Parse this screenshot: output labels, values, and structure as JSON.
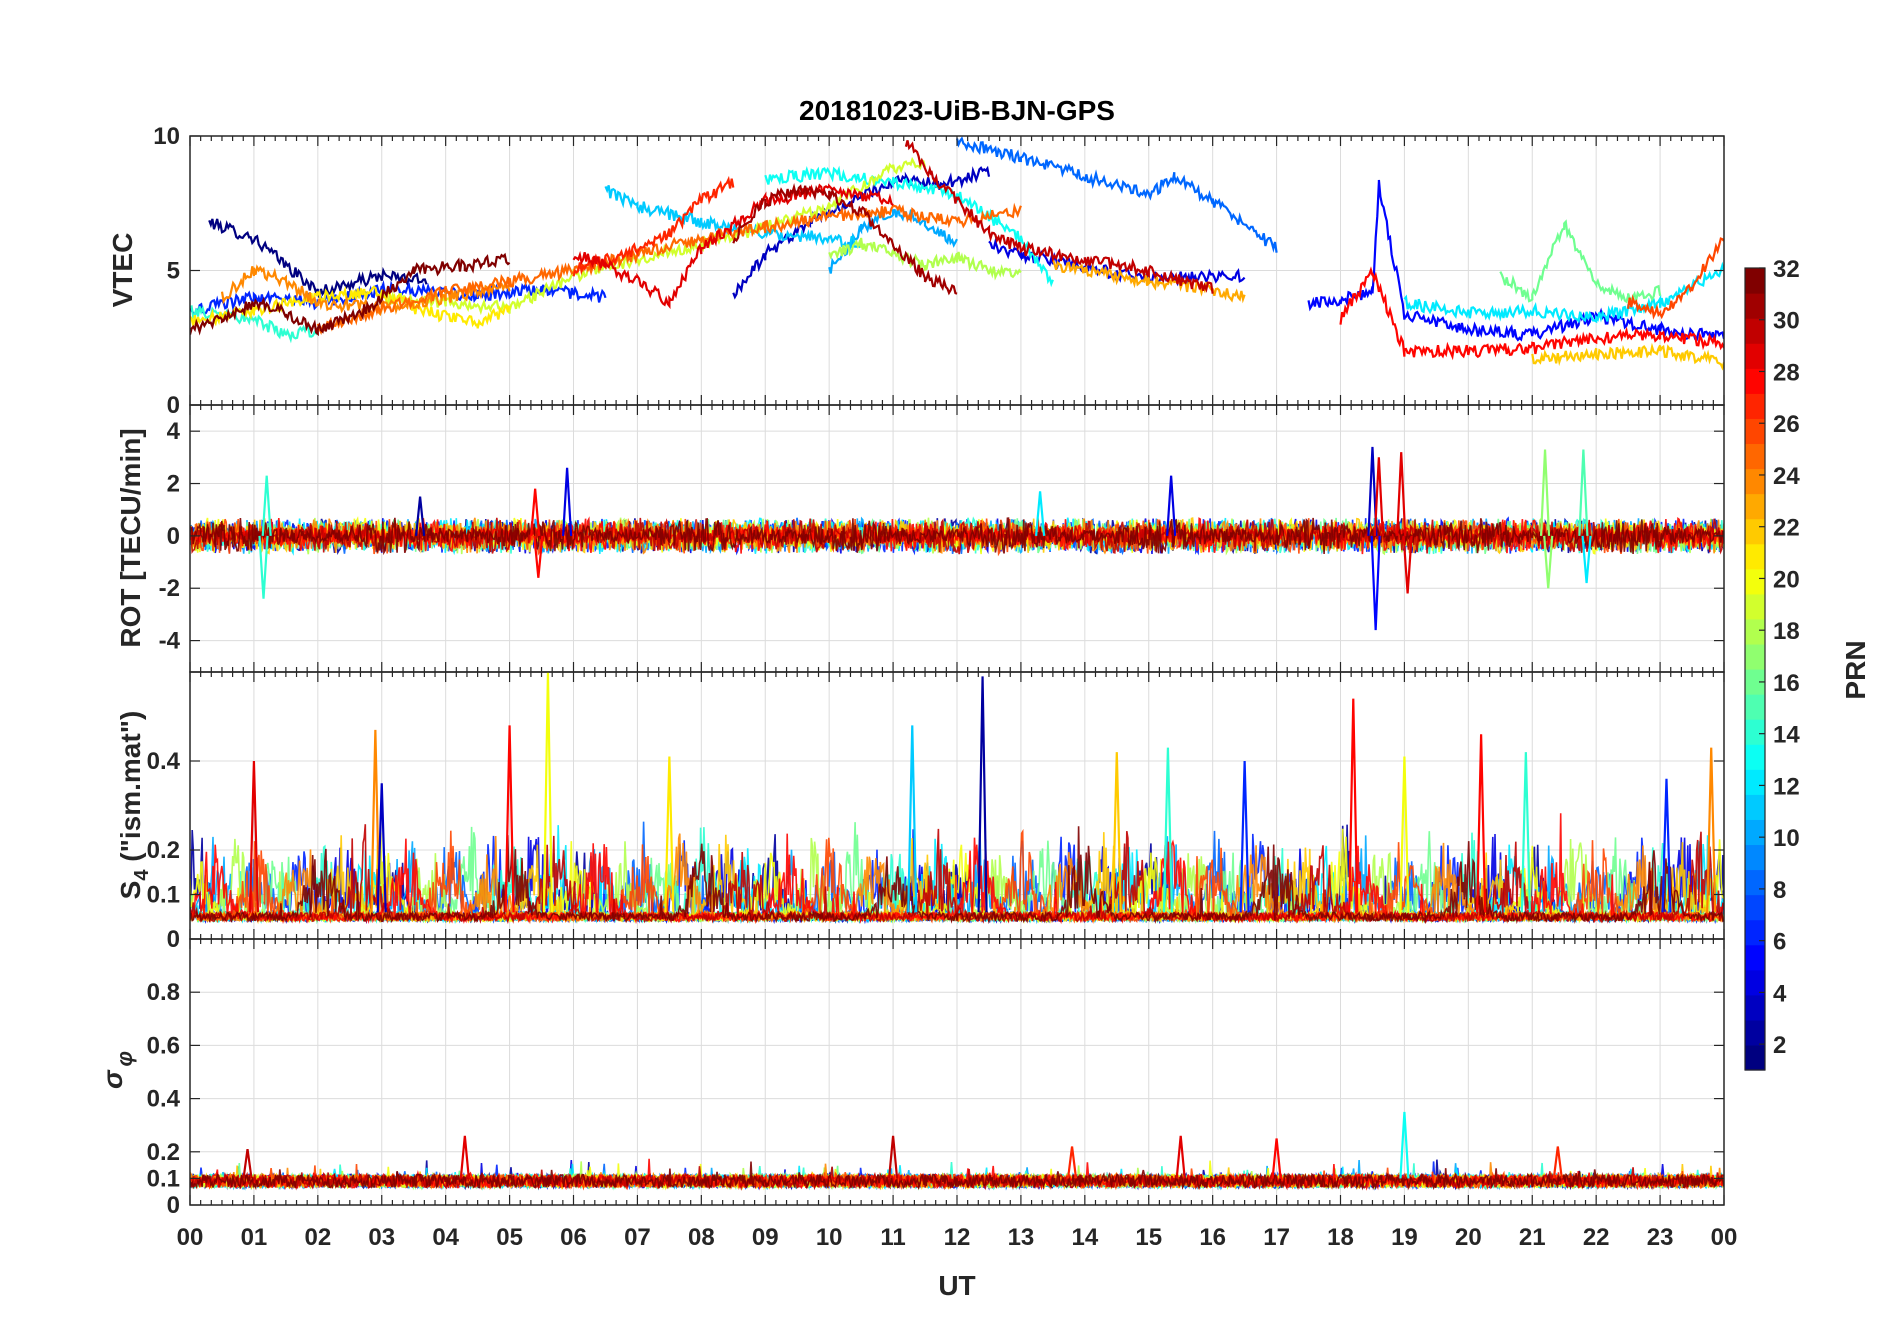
{
  "chart_data": {
    "type": "line",
    "title": "20181023-UiB-BJN-GPS",
    "xlabel": "UT",
    "x_ticks": [
      "00",
      "01",
      "02",
      "03",
      "04",
      "05",
      "06",
      "07",
      "08",
      "09",
      "10",
      "11",
      "12",
      "13",
      "14",
      "15",
      "16",
      "17",
      "18",
      "19",
      "20",
      "21",
      "22",
      "23",
      "00"
    ],
    "xlim": [
      0,
      24
    ],
    "grid": true,
    "colorbar": {
      "label": "PRN",
      "range": [
        1,
        32
      ],
      "ticks": [
        "2",
        "4",
        "6",
        "8",
        "10",
        "12",
        "14",
        "16",
        "18",
        "20",
        "22",
        "24",
        "26",
        "28",
        "30",
        "32"
      ],
      "colormap": "jet",
      "levels": 32
    },
    "panels": [
      {
        "id": "vtec",
        "ylabel": "VTEC",
        "ylim": [
          0,
          10
        ],
        "y_ticks": [
          "0",
          "5",
          "10"
        ],
        "series": [
          {
            "prn": 1,
            "x": [
              0.3,
              1.0,
              2.0,
              3.0,
              3.7
            ],
            "y": [
              6.8,
              6.2,
              4.2,
              4.8,
              4.6
            ]
          },
          {
            "prn": 3,
            "x": [
              8.5,
              9.0,
              9.7,
              10.5,
              11.2,
              11.8,
              12.5
            ],
            "y": [
              4.1,
              5.6,
              6.8,
              7.8,
              8.4,
              8.2,
              8.7
            ]
          },
          {
            "prn": 4,
            "x": [
              12.5,
              13.0,
              13.5,
              14.0,
              15.0,
              16.5
            ],
            "y": [
              6.0,
              5.6,
              5.4,
              5.1,
              4.7,
              4.8
            ]
          },
          {
            "prn": 5,
            "x": [
              17.5,
              18.0,
              18.5,
              18.6,
              19.0,
              20.0,
              21.0,
              22.0,
              23.0,
              24.0
            ],
            "y": [
              3.8,
              3.9,
              4.2,
              8.2,
              3.4,
              2.8,
              2.6,
              3.3,
              2.8,
              2.5
            ]
          },
          {
            "prn": 6,
            "x": [
              0.0,
              1.0,
              2.0,
              3.0,
              4.5,
              5.5,
              6.5
            ],
            "y": [
              3.5,
              4.0,
              3.8,
              4.3,
              4.1,
              4.3,
              4.0
            ]
          },
          {
            "prn": 8,
            "x": [
              12.0,
              13.0,
              14.0,
              15.0,
              15.4,
              16.0,
              17.0
            ],
            "y": [
              9.8,
              9.2,
              8.5,
              7.8,
              8.5,
              7.6,
              5.8
            ]
          },
          {
            "prn": 10,
            "x": [
              10.0,
              10.5,
              11.0,
              11.5,
              12.0
            ],
            "y": [
              5.0,
              6.5,
              7.2,
              6.8,
              6.0
            ]
          },
          {
            "prn": 11,
            "x": [
              6.5,
              7.0,
              8.0,
              9.0,
              10.0,
              10.5
            ],
            "y": [
              8.0,
              7.4,
              6.8,
              6.4,
              6.2,
              6.0
            ]
          },
          {
            "prn": 12,
            "x": [
              19.0,
              20.0,
              21.0,
              22.0,
              23.0,
              24.0
            ],
            "y": [
              3.8,
              3.4,
              3.5,
              3.2,
              3.8,
              5.0
            ]
          },
          {
            "prn": 13,
            "x": [
              9.0,
              10.0,
              11.0,
              12.0,
              13.0,
              13.5
            ],
            "y": [
              8.4,
              8.6,
              8.3,
              7.8,
              6.2,
              4.5
            ]
          },
          {
            "prn": 14,
            "x": [
              0.0,
              1.0,
              1.5,
              2.0
            ],
            "y": [
              3.5,
              3.2,
              2.6,
              2.8
            ]
          },
          {
            "prn": 16,
            "x": [
              20.5,
              21.0,
              21.5,
              22.0,
              22.5,
              23.0
            ],
            "y": [
              4.8,
              4.0,
              6.7,
              4.5,
              4.0,
              4.2
            ]
          },
          {
            "prn": 18,
            "x": [
              10.0,
              10.5,
              11.0,
              11.5,
              12.0,
              12.5,
              13.0
            ],
            "y": [
              5.5,
              6.0,
              5.6,
              5.2,
              5.5,
              5.0,
              4.8
            ]
          },
          {
            "prn": 19,
            "x": [
              3.0,
              4.0,
              5.0,
              5.5,
              6.0,
              7.0,
              8.0,
              9.0,
              10.0,
              11.0,
              11.5
            ],
            "y": [
              4.0,
              3.8,
              3.6,
              4.2,
              4.8,
              5.4,
              6.0,
              6.6,
              7.4,
              8.8,
              9.0
            ]
          },
          {
            "prn": 21,
            "x": [
              0.0,
              1.0,
              2.0,
              3.0,
              3.5,
              4.5,
              5.0
            ],
            "y": [
              3.1,
              3.5,
              4.0,
              4.2,
              3.6,
              3.0,
              3.6
            ]
          },
          {
            "prn": 22,
            "x": [
              21.0,
              22.0,
              23.0,
              24.0
            ],
            "y": [
              1.7,
              1.9,
              2.0,
              1.6
            ]
          },
          {
            "prn": 23,
            "x": [
              13.5,
              14.0,
              15.0,
              16.0,
              16.5
            ],
            "y": [
              5.2,
              5.0,
              4.6,
              4.3,
              4.0
            ]
          },
          {
            "prn": 24,
            "x": [
              0.5,
              1.0,
              1.5,
              2.0,
              3.0,
              4.0,
              5.0
            ],
            "y": [
              4.0,
              5.0,
              4.6,
              3.8,
              3.6,
              4.0,
              4.4
            ]
          },
          {
            "prn": 25,
            "x": [
              2.0,
              3.0,
              4.0,
              5.0,
              6.0,
              7.0,
              8.0,
              9.0,
              10.0,
              11.0,
              12.0,
              13.0
            ],
            "y": [
              2.8,
              3.6,
              4.2,
              4.6,
              5.0,
              5.6,
              6.2,
              6.6,
              7.0,
              7.2,
              6.8,
              7.2
            ]
          },
          {
            "prn": 26,
            "x": [
              22.5,
              23.0,
              23.5,
              24.0
            ],
            "y": [
              3.8,
              3.4,
              4.4,
              6.2
            ]
          },
          {
            "prn": 27,
            "x": [
              6.0,
              7.0,
              7.5,
              8.0,
              8.5
            ],
            "y": [
              5.0,
              5.8,
              6.4,
              7.6,
              8.3
            ]
          },
          {
            "prn": 28,
            "x": [
              18.0,
              18.5,
              19.0,
              20.0,
              21.0,
              22.0,
              23.0,
              24.0
            ],
            "y": [
              3.2,
              5.0,
              2.0,
              2.0,
              2.1,
              2.5,
              2.6,
              2.3
            ]
          },
          {
            "prn": 29,
            "x": [
              6.0,
              6.5,
              7.0,
              7.5,
              8.0,
              9.0,
              10.0,
              11.0
            ],
            "y": [
              5.6,
              5.2,
              4.6,
              3.8,
              5.8,
              7.6,
              8.0,
              7.6
            ]
          },
          {
            "prn": 30,
            "x": [
              11.2,
              11.6,
              12.0,
              12.5,
              13.0,
              14.0,
              15.0,
              16.0
            ],
            "y": [
              9.8,
              8.6,
              7.6,
              6.4,
              5.8,
              5.4,
              5.0,
              4.3
            ]
          },
          {
            "prn": 32,
            "x": [
              0.0,
              0.5,
              1.0,
              1.5,
              2.0,
              2.8,
              3.5,
              4.3,
              5.0
            ],
            "y": [
              2.8,
              3.2,
              3.8,
              3.4,
              2.8,
              3.6,
              5.0,
              5.2,
              5.4
            ]
          },
          {
            "prn": 31,
            "x": [
              8.5,
              9.0,
              9.5,
              10.0,
              10.5,
              11.0,
              11.5,
              12.0
            ],
            "y": [
              6.2,
              7.6,
              8.0,
              7.8,
              7.2,
              6.0,
              4.8,
              4.2
            ]
          }
        ]
      },
      {
        "id": "rot",
        "ylabel": "ROT [TECU/min]",
        "ylim": [
          -5.2,
          5
        ],
        "y_ticks": [
          "-4",
          "-2",
          "0",
          "2",
          "4"
        ],
        "spikes": [
          {
            "x": 1.15,
            "y": -2.4,
            "prn": 14
          },
          {
            "x": 1.2,
            "y": 2.3,
            "prn": 14
          },
          {
            "x": 3.6,
            "y": 1.5,
            "prn": 2
          },
          {
            "x": 5.4,
            "y": 1.8,
            "prn": 28
          },
          {
            "x": 5.45,
            "y": -1.6,
            "prn": 28
          },
          {
            "x": 5.9,
            "y": 2.6,
            "prn": 4
          },
          {
            "x": 13.3,
            "y": 1.7,
            "prn": 12
          },
          {
            "x": 15.35,
            "y": 2.3,
            "prn": 4
          },
          {
            "x": 18.5,
            "y": 3.4,
            "prn": 3
          },
          {
            "x": 18.55,
            "y": -3.6,
            "prn": 5
          },
          {
            "x": 18.6,
            "y": 3.0,
            "prn": 29
          },
          {
            "x": 18.95,
            "y": 3.2,
            "prn": 29
          },
          {
            "x": 19.05,
            "y": -2.2,
            "prn": 29
          },
          {
            "x": 21.2,
            "y": 3.3,
            "prn": 17
          },
          {
            "x": 21.25,
            "y": -2.0,
            "prn": 17
          },
          {
            "x": 21.8,
            "y": 3.3,
            "prn": 15
          },
          {
            "x": 21.85,
            "y": -1.8,
            "prn": 12
          }
        ]
      },
      {
        "id": "s4",
        "ylabel": "S4 (\"ism.mat\")",
        "ylabel_main": "S",
        "ylabel_sub": "4",
        "ylabel_rest": " (\"ism.mat\")",
        "ylim": [
          0,
          0.6
        ],
        "y_ticks": [
          "0",
          "0.1",
          "0.2",
          "0.4"
        ],
        "spikes": [
          {
            "x": 1.0,
            "y": 0.4,
            "prn": 29
          },
          {
            "x": 2.9,
            "y": 0.47,
            "prn": 24
          },
          {
            "x": 3.0,
            "y": 0.35,
            "prn": 3
          },
          {
            "x": 5.0,
            "y": 0.48,
            "prn": 28
          },
          {
            "x": 5.6,
            "y": 0.6,
            "prn": 20
          },
          {
            "x": 7.5,
            "y": 0.41,
            "prn": 21
          },
          {
            "x": 11.3,
            "y": 0.48,
            "prn": 11
          },
          {
            "x": 12.4,
            "y": 0.59,
            "prn": 2
          },
          {
            "x": 18.2,
            "y": 0.54,
            "prn": 28
          },
          {
            "x": 14.5,
            "y": 0.42,
            "prn": 22
          },
          {
            "x": 15.3,
            "y": 0.43,
            "prn": 14
          },
          {
            "x": 16.5,
            "y": 0.4,
            "prn": 6
          },
          {
            "x": 19.0,
            "y": 0.41,
            "prn": 20
          },
          {
            "x": 20.2,
            "y": 0.46,
            "prn": 28
          },
          {
            "x": 20.9,
            "y": 0.42,
            "prn": 14
          },
          {
            "x": 23.1,
            "y": 0.36,
            "prn": 6
          },
          {
            "x": 23.8,
            "y": 0.43,
            "prn": 24
          }
        ]
      },
      {
        "id": "sigphi",
        "ylabel": "σφ",
        "ylabel_main": "σ",
        "ylabel_sub": "φ",
        "ylim": [
          0,
          1.0
        ],
        "y_ticks": [
          "0",
          "0.1",
          "0.2",
          "0.4",
          "0.6",
          "0.8"
        ],
        "spikes": [
          {
            "x": 0.9,
            "y": 0.21,
            "prn": 30
          },
          {
            "x": 4.3,
            "y": 0.26,
            "prn": 29
          },
          {
            "x": 11.0,
            "y": 0.26,
            "prn": 30
          },
          {
            "x": 13.8,
            "y": 0.22,
            "prn": 27
          },
          {
            "x": 15.5,
            "y": 0.26,
            "prn": 29
          },
          {
            "x": 17.0,
            "y": 0.25,
            "prn": 28
          },
          {
            "x": 19.0,
            "y": 0.35,
            "prn": 13
          },
          {
            "x": 21.4,
            "y": 0.22,
            "prn": 27
          }
        ]
      }
    ]
  }
}
